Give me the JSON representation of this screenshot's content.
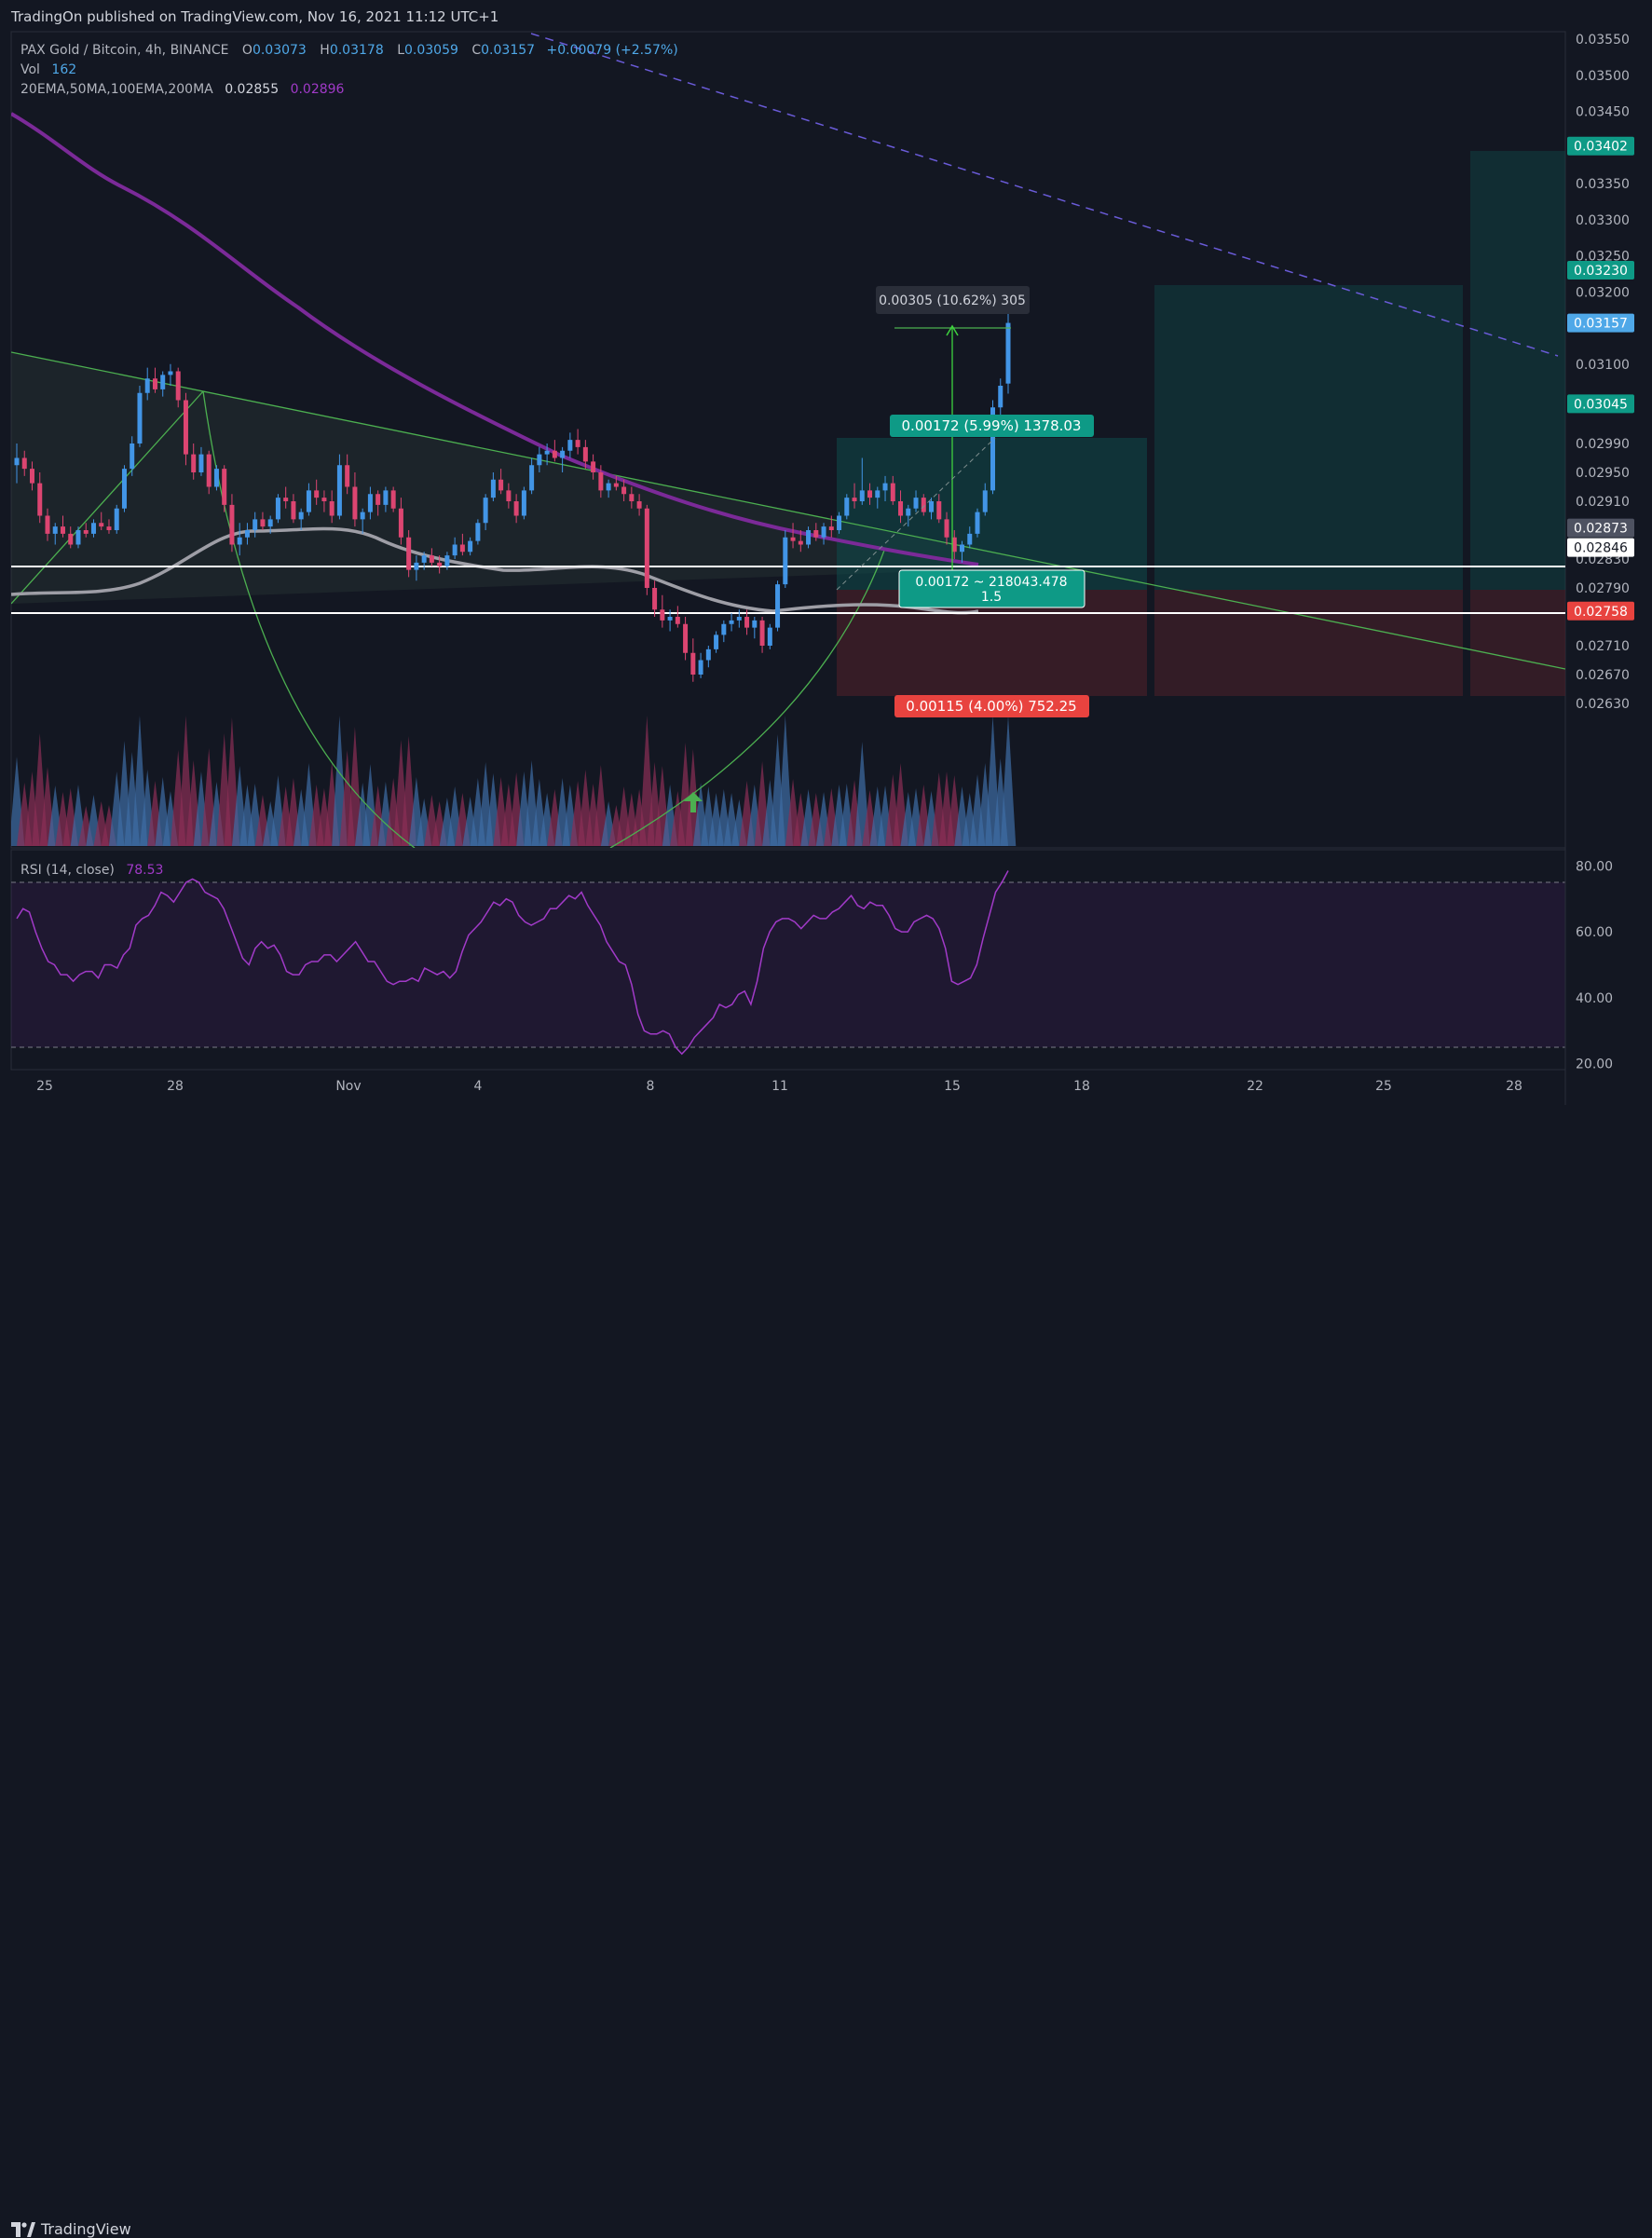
{
  "publish_text": "TradingOn published on TradingView.com, Nov 16, 2021 11:12 UTC+1",
  "footer_brand": "TradingView",
  "legend": {
    "symbol": "PAX Gold / Bitcoin, 4h, BINANCE",
    "o_label": "O",
    "o_value": "0.03073",
    "h_label": "H",
    "h_value": "0.03178",
    "l_label": "L",
    "l_value": "0.03059",
    "c_label": "C",
    "c_value": "0.03157",
    "change": "+0.00079 (+2.57%)",
    "vol_label": "Vol",
    "vol_value": "162",
    "ma_label": "20EMA,50MA,100EMA,200MA",
    "ma_value1": "0.02855",
    "ma_value2": "0.02896",
    "rsi_label": "RSI (14, close)",
    "rsi_value": "78.53"
  },
  "colors": {
    "background": "#131722",
    "up": "#4295e6",
    "down": "#dc4571",
    "ma200": "#7b2a98",
    "ma50": "#9e9ea6",
    "green_line": "#4caf50",
    "target_zone": "#133f40",
    "stop_zone": "#3b1f28",
    "rsi": "#a13ac8"
  },
  "chart_data": {
    "type": "candlestick",
    "title": "",
    "y_ticks": [
      "0.03550",
      "0.03500",
      "0.03450",
      "0.03350",
      "0.03300",
      "0.03250",
      "0.03200",
      "0.03100",
      "0.02990",
      "0.02950",
      "0.02910",
      "0.02830",
      "0.02790",
      "0.02710",
      "0.02670",
      "0.02630"
    ],
    "x_ticks": [
      "25",
      "28",
      "Nov",
      "4",
      "8",
      "11",
      "15",
      "18",
      "22",
      "25",
      "28"
    ],
    "price_badges": [
      {
        "value": "0.03402",
        "kind": "target"
      },
      {
        "value": "0.03230",
        "kind": "target"
      },
      {
        "value": "0.03157",
        "kind": "last"
      },
      {
        "value": "0.03045",
        "kind": "target"
      },
      {
        "value": "0.02873",
        "kind": "entry"
      },
      {
        "value": "0.02846",
        "kind": "level"
      },
      {
        "value": "0.02758",
        "kind": "stop"
      }
    ],
    "horizontal_levels": [
      0.02885,
      0.02846
    ],
    "annotations": {
      "measure": "0.00305 (10.62%) 305",
      "target_label": "0.00172 (5.99%) 1378.03",
      "entry_label_1": "0.00172 ~ 218043.478",
      "entry_label_2": "1.5",
      "stop_label": "0.00115 (4.00%) 752.25"
    },
    "rsi": {
      "ticks": [
        "80.00",
        "60.00",
        "40.00",
        "20.00"
      ],
      "upper_band": 75,
      "lower_band": 25,
      "values": [
        64,
        67,
        66,
        60,
        55,
        51,
        50,
        47,
        47,
        45,
        47,
        48,
        48,
        46,
        50,
        50,
        49,
        53,
        55,
        62,
        64,
        65,
        68,
        72,
        71,
        69,
        72,
        75,
        76,
        75,
        72,
        71,
        70,
        67,
        62,
        57,
        52,
        50,
        55,
        57,
        55,
        56,
        53,
        48,
        47,
        47,
        50,
        51,
        51,
        53,
        53,
        51,
        53,
        55,
        57,
        54,
        51,
        51,
        48,
        45,
        44,
        45,
        45,
        46,
        45,
        49,
        48,
        47,
        48,
        46,
        48,
        54,
        59,
        61,
        63,
        66,
        69,
        68,
        70,
        69,
        65,
        63,
        62,
        63,
        64,
        67,
        67,
        69,
        71,
        70,
        72,
        68,
        65,
        62,
        57,
        54,
        51,
        50,
        44,
        35,
        30,
        29,
        29,
        30,
        29,
        25,
        23,
        25,
        28,
        30,
        32,
        34,
        38,
        37,
        38,
        41,
        42,
        38,
        45,
        55,
        60,
        63,
        64,
        64,
        63,
        61,
        63,
        65,
        64,
        64,
        66,
        67,
        69,
        71,
        68,
        67,
        69,
        68,
        68,
        65,
        61,
        60,
        60,
        63,
        64,
        65,
        64,
        61,
        55,
        45,
        44,
        45,
        46,
        50,
        58,
        65,
        72,
        75,
        78.53
      ]
    },
    "series": [
      {
        "name": "candles",
        "ohlc": [
          [
            0.0296,
            0.0299,
            0.02935,
            0.0297
          ],
          [
            0.0297,
            0.0298,
            0.02945,
            0.02955
          ],
          [
            0.02955,
            0.02965,
            0.02925,
            0.02935
          ],
          [
            0.02935,
            0.0295,
            0.0288,
            0.0289
          ],
          [
            0.0289,
            0.029,
            0.02855,
            0.02865
          ],
          [
            0.02865,
            0.0288,
            0.0285,
            0.02875
          ],
          [
            0.02875,
            0.0289,
            0.0286,
            0.02865
          ],
          [
            0.02865,
            0.02875,
            0.02845,
            0.0285
          ],
          [
            0.0285,
            0.02875,
            0.02845,
            0.0287
          ],
          [
            0.0287,
            0.0288,
            0.0286,
            0.02865
          ],
          [
            0.02865,
            0.02885,
            0.0286,
            0.0288
          ],
          [
            0.0288,
            0.02895,
            0.0287,
            0.02875
          ],
          [
            0.02875,
            0.02885,
            0.02865,
            0.0287
          ],
          [
            0.0287,
            0.02905,
            0.02865,
            0.029
          ],
          [
            0.029,
            0.0296,
            0.02895,
            0.02955
          ],
          [
            0.02955,
            0.03,
            0.02945,
            0.0299
          ],
          [
            0.0299,
            0.0307,
            0.02985,
            0.0306
          ],
          [
            0.0306,
            0.03095,
            0.0305,
            0.0308
          ],
          [
            0.0308,
            0.03095,
            0.0306,
            0.03065
          ],
          [
            0.03065,
            0.0309,
            0.03055,
            0.03085
          ],
          [
            0.03085,
            0.031,
            0.0307,
            0.0309
          ],
          [
            0.0309,
            0.03095,
            0.0304,
            0.0305
          ],
          [
            0.0305,
            0.0306,
            0.0296,
            0.02975
          ],
          [
            0.02975,
            0.0299,
            0.0294,
            0.0295
          ],
          [
            0.0295,
            0.02985,
            0.02945,
            0.02975
          ],
          [
            0.02975,
            0.0298,
            0.0292,
            0.0293
          ],
          [
            0.0293,
            0.0296,
            0.02925,
            0.02955
          ],
          [
            0.02955,
            0.0296,
            0.02895,
            0.02905
          ],
          [
            0.02905,
            0.0292,
            0.0284,
            0.0285
          ],
          [
            0.0285,
            0.0288,
            0.02835,
            0.0286
          ],
          [
            0.0286,
            0.0288,
            0.0285,
            0.0287
          ],
          [
            0.0287,
            0.02895,
            0.0286,
            0.02885
          ],
          [
            0.02885,
            0.02895,
            0.0287,
            0.02875
          ],
          [
            0.02875,
            0.0289,
            0.02865,
            0.02885
          ],
          [
            0.02885,
            0.0292,
            0.0288,
            0.02915
          ],
          [
            0.02915,
            0.0293,
            0.029,
            0.0291
          ],
          [
            0.0291,
            0.0292,
            0.0288,
            0.02885
          ],
          [
            0.02885,
            0.029,
            0.0287,
            0.02895
          ],
          [
            0.02895,
            0.02935,
            0.0289,
            0.02925
          ],
          [
            0.02925,
            0.0294,
            0.02905,
            0.02915
          ],
          [
            0.02915,
            0.02925,
            0.02895,
            0.0291
          ],
          [
            0.0291,
            0.02925,
            0.0288,
            0.0289
          ],
          [
            0.0289,
            0.02975,
            0.02885,
            0.0296
          ],
          [
            0.0296,
            0.02975,
            0.0292,
            0.0293
          ],
          [
            0.0293,
            0.0295,
            0.02875,
            0.02885
          ],
          [
            0.02885,
            0.029,
            0.02865,
            0.02895
          ],
          [
            0.02895,
            0.0293,
            0.02885,
            0.0292
          ],
          [
            0.0292,
            0.02925,
            0.0289,
            0.02905
          ],
          [
            0.02905,
            0.0293,
            0.02895,
            0.02925
          ],
          [
            0.02925,
            0.0293,
            0.02895,
            0.029
          ],
          [
            0.029,
            0.02915,
            0.0285,
            0.0286
          ],
          [
            0.0286,
            0.0287,
            0.02805,
            0.02815
          ],
          [
            0.02815,
            0.02835,
            0.028,
            0.02825
          ],
          [
            0.02825,
            0.0284,
            0.02815,
            0.02835
          ],
          [
            0.02835,
            0.02845,
            0.0282,
            0.02825
          ],
          [
            0.02825,
            0.02835,
            0.0281,
            0.0282
          ],
          [
            0.0282,
            0.0284,
            0.02815,
            0.02835
          ],
          [
            0.02835,
            0.0286,
            0.0283,
            0.0285
          ],
          [
            0.0285,
            0.02865,
            0.02835,
            0.0284
          ],
          [
            0.0284,
            0.0286,
            0.02835,
            0.02855
          ],
          [
            0.02855,
            0.02885,
            0.0285,
            0.0288
          ],
          [
            0.0288,
            0.0292,
            0.0287,
            0.02915
          ],
          [
            0.02915,
            0.0295,
            0.0291,
            0.0294
          ],
          [
            0.0294,
            0.02955,
            0.0292,
            0.02925
          ],
          [
            0.02925,
            0.02935,
            0.029,
            0.0291
          ],
          [
            0.0291,
            0.0292,
            0.0288,
            0.0289
          ],
          [
            0.0289,
            0.0293,
            0.02885,
            0.02925
          ],
          [
            0.02925,
            0.0297,
            0.0292,
            0.0296
          ],
          [
            0.0296,
            0.02985,
            0.0295,
            0.02975
          ],
          [
            0.02975,
            0.0299,
            0.0296,
            0.0298
          ],
          [
            0.0298,
            0.02995,
            0.02965,
            0.0297
          ],
          [
            0.0297,
            0.02985,
            0.0295,
            0.0298
          ],
          [
            0.0298,
            0.03005,
            0.0297,
            0.02995
          ],
          [
            0.02995,
            0.0301,
            0.02975,
            0.02985
          ],
          [
            0.02985,
            0.02995,
            0.02955,
            0.02965
          ],
          [
            0.02965,
            0.02975,
            0.0294,
            0.0295
          ],
          [
            0.0295,
            0.0296,
            0.02915,
            0.02925
          ],
          [
            0.02925,
            0.0294,
            0.02915,
            0.02935
          ],
          [
            0.02935,
            0.02945,
            0.02925,
            0.0293
          ],
          [
            0.0293,
            0.0294,
            0.0291,
            0.0292
          ],
          [
            0.0292,
            0.0293,
            0.029,
            0.0291
          ],
          [
            0.0291,
            0.0292,
            0.0289,
            0.029
          ],
          [
            0.029,
            0.02905,
            0.0278,
            0.0279
          ],
          [
            0.0279,
            0.028,
            0.0275,
            0.0276
          ],
          [
            0.0276,
            0.0278,
            0.02735,
            0.02745
          ],
          [
            0.02745,
            0.0276,
            0.0273,
            0.0275
          ],
          [
            0.0275,
            0.02765,
            0.02735,
            0.0274
          ],
          [
            0.0274,
            0.0275,
            0.0269,
            0.027
          ],
          [
            0.027,
            0.0272,
            0.0266,
            0.0267
          ],
          [
            0.0267,
            0.027,
            0.02665,
            0.0269
          ],
          [
            0.0269,
            0.0271,
            0.0268,
            0.02705
          ],
          [
            0.02705,
            0.0273,
            0.027,
            0.02725
          ],
          [
            0.02725,
            0.02745,
            0.02715,
            0.0274
          ],
          [
            0.0274,
            0.02755,
            0.0273,
            0.02745
          ],
          [
            0.02745,
            0.0276,
            0.02735,
            0.0275
          ],
          [
            0.0275,
            0.0276,
            0.02725,
            0.02735
          ],
          [
            0.02735,
            0.0275,
            0.0272,
            0.02745
          ],
          [
            0.02745,
            0.0275,
            0.027,
            0.0271
          ],
          [
            0.0271,
            0.0274,
            0.02705,
            0.02735
          ],
          [
            0.02735,
            0.028,
            0.0273,
            0.02795
          ],
          [
            0.02795,
            0.0287,
            0.0279,
            0.0286
          ],
          [
            0.0286,
            0.0288,
            0.02845,
            0.02855
          ],
          [
            0.02855,
            0.0287,
            0.0284,
            0.0285
          ],
          [
            0.0285,
            0.02875,
            0.02845,
            0.0287
          ],
          [
            0.0287,
            0.0288,
            0.02855,
            0.0286
          ],
          [
            0.0286,
            0.0288,
            0.0285,
            0.02875
          ],
          [
            0.02875,
            0.0289,
            0.0286,
            0.0287
          ],
          [
            0.0287,
            0.02895,
            0.02865,
            0.0289
          ],
          [
            0.0289,
            0.0292,
            0.02885,
            0.02915
          ],
          [
            0.02915,
            0.02935,
            0.029,
            0.0291
          ],
          [
            0.0291,
            0.0297,
            0.02905,
            0.02925
          ],
          [
            0.02925,
            0.02935,
            0.02905,
            0.02915
          ],
          [
            0.02915,
            0.0293,
            0.029,
            0.02925
          ],
          [
            0.02925,
            0.02945,
            0.0291,
            0.02935
          ],
          [
            0.02935,
            0.02945,
            0.02905,
            0.0291
          ],
          [
            0.0291,
            0.02925,
            0.0288,
            0.0289
          ],
          [
            0.0289,
            0.02905,
            0.02875,
            0.029
          ],
          [
            0.029,
            0.02925,
            0.02895,
            0.02915
          ],
          [
            0.02915,
            0.0292,
            0.0289,
            0.02895
          ],
          [
            0.02895,
            0.02915,
            0.02885,
            0.0291
          ],
          [
            0.0291,
            0.0292,
            0.0288,
            0.02885
          ],
          [
            0.02885,
            0.02895,
            0.0285,
            0.0286
          ],
          [
            0.0286,
            0.0287,
            0.0283,
            0.0284
          ],
          [
            0.0284,
            0.02855,
            0.02825,
            0.0285
          ],
          [
            0.0285,
            0.02875,
            0.02845,
            0.02865
          ],
          [
            0.02865,
            0.029,
            0.0286,
            0.02895
          ],
          [
            0.02895,
            0.02935,
            0.0289,
            0.02925
          ],
          [
            0.02925,
            0.0305,
            0.0292,
            0.0304
          ],
          [
            0.0304,
            0.0308,
            0.0303,
            0.0307
          ],
          [
            0.03073,
            0.03178,
            0.03059,
            0.03157
          ]
        ]
      }
    ]
  }
}
